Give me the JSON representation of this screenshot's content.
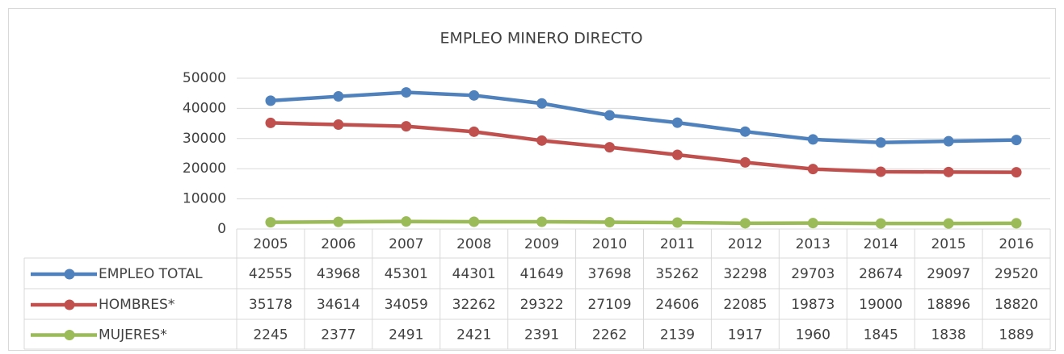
{
  "chart_data": {
    "type": "line",
    "title": "EMPLEO MINERO DIRECTO",
    "categories": [
      "2005",
      "2006",
      "2007",
      "2008",
      "2009",
      "2010",
      "2011",
      "2012",
      "2013",
      "2014",
      "2015",
      "2016"
    ],
    "series": [
      {
        "name": "EMPLEO TOTAL",
        "color": "#4f81bd",
        "values": [
          42555,
          43968,
          45301,
          44301,
          41649,
          37698,
          35262,
          32298,
          29703,
          28674,
          29097,
          29520
        ]
      },
      {
        "name": "HOMBRES*",
        "color": "#c0504d",
        "values": [
          35178,
          34614,
          34059,
          32262,
          29322,
          27109,
          24606,
          22085,
          19873,
          19000,
          18896,
          18820
        ]
      },
      {
        "name": "MUJERES*",
        "color": "#9bbb59",
        "values": [
          2245,
          2377,
          2491,
          2421,
          2391,
          2262,
          2139,
          1917,
          1960,
          1845,
          1838,
          1889
        ]
      }
    ],
    "ylim": [
      0,
      50000
    ],
    "yticks": [
      0,
      10000,
      20000,
      30000,
      40000,
      50000
    ],
    "grid": true,
    "data_table": true
  }
}
